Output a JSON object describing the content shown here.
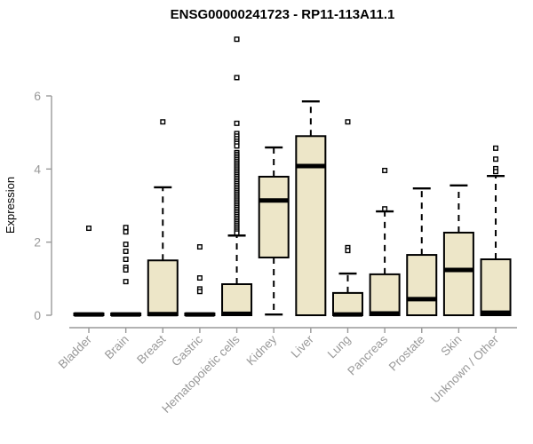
{
  "page": {
    "background": "#ffffff"
  },
  "chart_data": {
    "type": "boxplot",
    "title": "ENSG00000241723 - RP11-113A11.1",
    "xlabel": "",
    "ylabel": "Expression",
    "yticks": [
      0,
      2,
      4,
      6
    ],
    "ylim": [
      0,
      6
    ],
    "grid": false,
    "legend": false,
    "colors": {
      "box_fill": "#EDE6C8",
      "box_stroke": "#000000",
      "median": "#000000",
      "whisker": "#000000",
      "outlier_fill": "#ffffff",
      "outlier_stroke": "#000000",
      "axis": "#999999",
      "title": "#000000",
      "background": "#ffffff"
    },
    "categories": [
      "Bladder",
      "Brain",
      "Breast",
      "Gastric",
      "Hematopoietic cells",
      "Kidney",
      "Liver",
      "Lung",
      "Pancreas",
      "Prostate",
      "Skin",
      "Unknown / Other"
    ],
    "boxes": [
      {
        "category": "Bladder",
        "whisker_low": 0,
        "q1": 0,
        "median": 0.02,
        "q3": 0.05,
        "whisker_high": 0.05,
        "outliers": [
          2.38
        ]
      },
      {
        "category": "Brain",
        "whisker_low": 0,
        "q1": 0,
        "median": 0.02,
        "q3": 0.05,
        "whisker_high": 0.05,
        "outliers": [
          2.4,
          2.28,
          1.94,
          1.75,
          1.53,
          1.31,
          1.24,
          0.92
        ]
      },
      {
        "category": "Breast",
        "whisker_low": 0,
        "q1": 0,
        "median": 0.03,
        "q3": 1.5,
        "whisker_high": 3.5,
        "outliers": [
          5.29
        ]
      },
      {
        "category": "Gastric",
        "whisker_low": 0,
        "q1": 0,
        "median": 0.02,
        "q3": 0.05,
        "whisker_high": 0.05,
        "outliers": [
          1.87,
          1.02,
          0.72,
          0.65
        ]
      },
      {
        "category": "Hematopoietic cells",
        "whisker_low": 0,
        "q1": 0,
        "median": 0.04,
        "q3": 0.85,
        "whisker_high": 2.18,
        "outliers": [
          7.55,
          6.5,
          5.25,
          4.97,
          4.9,
          4.83,
          4.76,
          4.7,
          4.63,
          4.45,
          4.4,
          4.35,
          4.3,
          4.25,
          4.2,
          4.15,
          4.1,
          4.05,
          4.0,
          3.95,
          3.9,
          3.85,
          3.8,
          3.75,
          3.7,
          3.65,
          3.6,
          3.55,
          3.5,
          3.45,
          3.4,
          3.35,
          3.3,
          3.25,
          3.2,
          3.15,
          3.1,
          3.05,
          3.0,
          2.95,
          2.9,
          2.85,
          2.8,
          2.75,
          2.7,
          2.65,
          2.6,
          2.55,
          2.5,
          2.45,
          2.4,
          2.35,
          2.3,
          2.25
        ]
      },
      {
        "category": "Kidney",
        "whisker_low": 0.02,
        "q1": 1.58,
        "median": 3.14,
        "q3": 3.79,
        "whisker_high": 4.59,
        "outliers": []
      },
      {
        "category": "Liver",
        "whisker_low": 0,
        "q1": 0,
        "median": 4.08,
        "q3": 4.9,
        "whisker_high": 5.85,
        "outliers": []
      },
      {
        "category": "Lung",
        "whisker_low": 0,
        "q1": 0,
        "median": 0.02,
        "q3": 0.61,
        "whisker_high": 1.14,
        "outliers": [
          5.29,
          1.85,
          1.77
        ]
      },
      {
        "category": "Pancreas",
        "whisker_low": 0,
        "q1": 0,
        "median": 0.05,
        "q3": 1.12,
        "whisker_high": 2.84,
        "outliers": [
          3.96,
          2.91
        ]
      },
      {
        "category": "Prostate",
        "whisker_low": 0,
        "q1": 0,
        "median": 0.44,
        "q3": 1.65,
        "whisker_high": 3.47,
        "outliers": []
      },
      {
        "category": "Skin",
        "whisker_low": 0,
        "q1": 0,
        "median": 1.24,
        "q3": 2.26,
        "whisker_high": 3.55,
        "outliers": []
      },
      {
        "category": "Unknown / Other",
        "whisker_low": 0,
        "q1": 0,
        "median": 0.07,
        "q3": 1.53,
        "whisker_high": 3.81,
        "outliers": [
          4.57,
          4.27,
          4.01,
          3.93
        ]
      }
    ]
  }
}
